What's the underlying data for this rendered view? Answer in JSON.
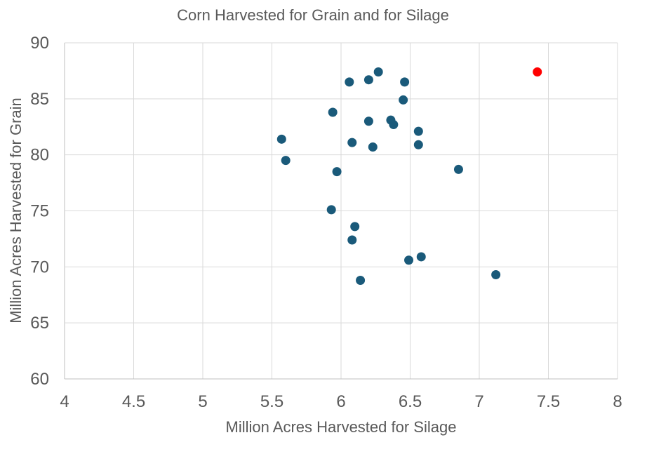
{
  "chart_data": {
    "type": "scatter",
    "title": "Corn Harvested for Grain and for Silage",
    "xlabel": "Million Acres Harvested for Silage",
    "ylabel": "Million Acres Harvested for Grain",
    "xlim": [
      4,
      8
    ],
    "ylim": [
      60,
      90
    ],
    "xticks": [
      4,
      4.5,
      5,
      5.5,
      6,
      6.5,
      7,
      7.5,
      8
    ],
    "xtick_labels": [
      "4",
      "4.5",
      "5",
      "5.5",
      "6",
      "6.5",
      "7",
      "7.5",
      "8"
    ],
    "yticks": [
      60,
      65,
      70,
      75,
      80,
      85,
      90
    ],
    "ytick_labels": [
      "60",
      "65",
      "70",
      "75",
      "80",
      "85",
      "90"
    ],
    "grid": true,
    "series": [
      {
        "name": "main",
        "color": "#1a5a7a",
        "x": [
          6.27,
          6.06,
          6.2,
          6.46,
          6.45,
          5.94,
          6.36,
          6.38,
          6.2,
          6.56,
          5.57,
          6.08,
          6.23,
          6.56,
          5.6,
          5.97,
          6.85,
          5.93,
          6.1,
          6.08,
          6.58,
          6.49,
          6.14,
          7.12
        ],
        "y": [
          87.4,
          86.5,
          86.7,
          86.5,
          84.9,
          83.8,
          83.1,
          82.7,
          83.0,
          82.1,
          81.4,
          81.1,
          80.7,
          80.9,
          79.5,
          78.5,
          78.7,
          75.1,
          73.6,
          72.4,
          70.9,
          70.6,
          68.8,
          69.3
        ]
      },
      {
        "name": "highlight",
        "color": "#ff0000",
        "x": [
          7.42
        ],
        "y": [
          87.4
        ]
      }
    ]
  }
}
